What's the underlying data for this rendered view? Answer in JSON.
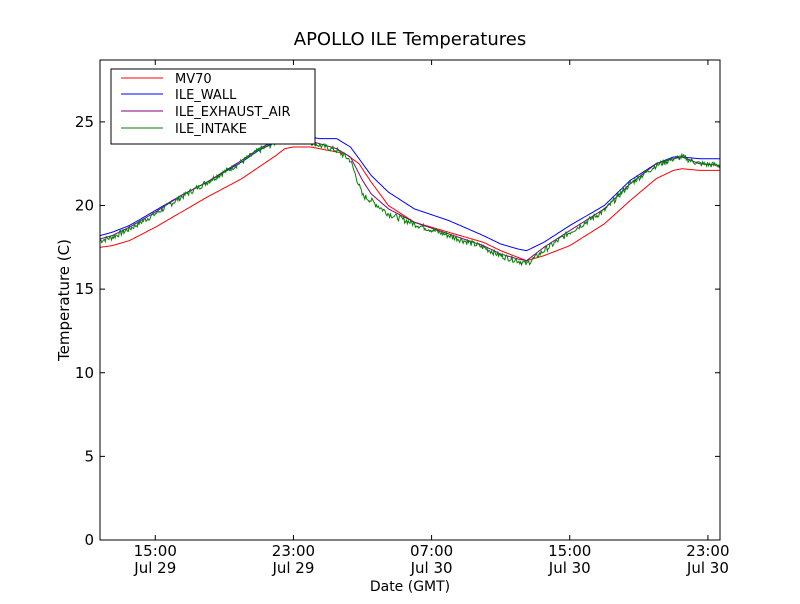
{
  "chart_data": {
    "type": "line",
    "title": "APOLLO ILE Temperatures",
    "xlabel": "Date (GMT)",
    "ylabel": "Temperature (C)",
    "x_unit": "hours since Jul 29 00:00 GMT",
    "xlim": [
      11.8,
      47.7
    ],
    "ylim": [
      0,
      28.7
    ],
    "grid": false,
    "legend_position": "top-left",
    "y_ticks": [
      0,
      5,
      10,
      15,
      20,
      25
    ],
    "x_ticks": [
      {
        "value": 15,
        "time": "15:00",
        "date": "Jul 29"
      },
      {
        "value": 23,
        "time": "23:00",
        "date": "Jul 29"
      },
      {
        "value": 31,
        "time": "07:00",
        "date": "Jul 30"
      },
      {
        "value": 39,
        "time": "15:00",
        "date": "Jul 30"
      },
      {
        "value": 47,
        "time": "23:00",
        "date": "Jul 30"
      }
    ],
    "series": [
      {
        "name": "MV70",
        "color": "#ff0000",
        "noise": 0,
        "x": [
          11.8,
          12.5,
          13.5,
          15.0,
          16.5,
          18.0,
          20.0,
          21.0,
          22.0,
          22.5,
          23.0,
          24.0,
          25.0,
          26.0,
          26.8,
          27.5,
          28.5,
          30.0,
          32.0,
          34.0,
          35.0,
          36.0,
          36.5,
          37.5,
          39.0,
          41.0,
          42.5,
          44.0,
          45.0,
          45.5,
          46.5,
          47.7
        ],
        "values": [
          17.5,
          17.6,
          17.9,
          18.7,
          19.6,
          20.5,
          21.6,
          22.3,
          23.0,
          23.4,
          23.5,
          23.5,
          23.3,
          23.1,
          22.5,
          21.4,
          20.0,
          19.0,
          18.4,
          17.8,
          17.3,
          16.9,
          16.7,
          17.0,
          17.6,
          18.9,
          20.3,
          21.6,
          22.1,
          22.2,
          22.1,
          22.1
        ]
      },
      {
        "name": "ILE_WALL",
        "color": "#0000ff",
        "noise": 0,
        "x": [
          11.8,
          12.5,
          13.5,
          15.0,
          16.5,
          18.0,
          20.0,
          21.0,
          22.0,
          22.8,
          23.5,
          24.5,
          25.5,
          26.3,
          26.8,
          27.5,
          28.5,
          30.0,
          32.0,
          34.0,
          35.0,
          36.0,
          36.5,
          37.5,
          39.0,
          41.0,
          42.5,
          44.0,
          45.0,
          45.5,
          46.5,
          47.7
        ],
        "values": [
          18.2,
          18.4,
          18.8,
          19.7,
          20.6,
          21.4,
          22.6,
          23.3,
          23.8,
          24.1,
          24.2,
          24.0,
          24.0,
          23.5,
          22.8,
          21.8,
          20.8,
          19.8,
          19.1,
          18.2,
          17.7,
          17.4,
          17.3,
          17.8,
          18.8,
          20.0,
          21.5,
          22.5,
          22.9,
          22.9,
          22.8,
          22.8
        ]
      },
      {
        "name": "ILE_EXHAUST_AIR",
        "color": "#800080",
        "noise": 0,
        "x": [
          11.8,
          12.5,
          13.5,
          15.0,
          16.5,
          18.0,
          20.0,
          21.0,
          22.0,
          22.8,
          23.5,
          24.5,
          25.5,
          26.3,
          27.0,
          27.5,
          28.5,
          30.0,
          32.0,
          34.0,
          35.0,
          36.0,
          36.5,
          37.5,
          39.0,
          41.0,
          42.5,
          44.0,
          45.0,
          45.5,
          46.5,
          47.7
        ],
        "values": [
          18.0,
          18.2,
          18.7,
          19.6,
          20.6,
          21.4,
          22.7,
          23.4,
          23.9,
          24.1,
          24.0,
          23.7,
          23.4,
          22.9,
          21.5,
          20.7,
          19.8,
          19.0,
          18.3,
          17.6,
          17.1,
          16.8,
          16.7,
          17.5,
          18.5,
          19.8,
          21.3,
          22.5,
          22.8,
          22.9,
          22.5,
          22.4
        ]
      },
      {
        "name": "ILE_INTAKE",
        "color": "#008000",
        "noise": 0.18,
        "x": [
          11.8,
          12.5,
          13.5,
          15.0,
          16.5,
          18.0,
          20.0,
          21.0,
          22.0,
          22.8,
          23.5,
          24.5,
          25.5,
          26.3,
          27.0,
          27.5,
          28.5,
          30.0,
          32.0,
          34.0,
          35.0,
          36.0,
          36.5,
          37.5,
          39.0,
          41.0,
          42.5,
          44.0,
          45.0,
          45.5,
          46.5,
          47.7
        ],
        "values": [
          17.9,
          18.1,
          18.6,
          19.5,
          20.5,
          21.4,
          22.6,
          23.3,
          23.8,
          24.1,
          24.0,
          23.6,
          23.3,
          22.7,
          20.6,
          20.3,
          19.5,
          18.9,
          18.2,
          17.5,
          17.0,
          16.7,
          16.5,
          17.3,
          18.4,
          19.7,
          21.3,
          22.4,
          22.8,
          22.9,
          22.5,
          22.4
        ]
      }
    ]
  }
}
